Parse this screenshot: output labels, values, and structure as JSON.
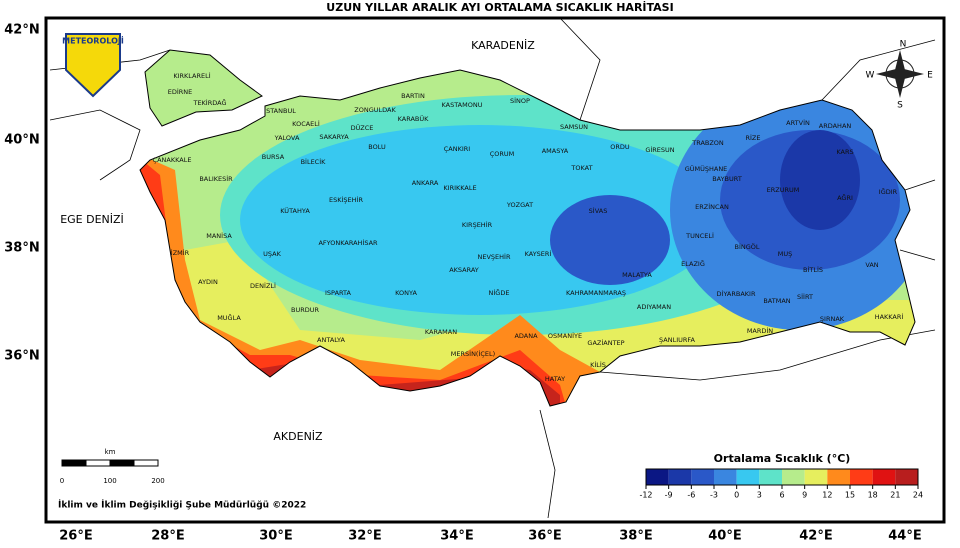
{
  "title": "UZUN YILLAR ARALIK AYI ORTALAMA SICAKLIK HARİTASI",
  "logo": "METEOROLOJİ",
  "compass": [
    "N",
    "E",
    "S",
    "W"
  ],
  "lat_labels": [
    "42°N",
    "40°N",
    "38°N",
    "36°N"
  ],
  "lon_labels": [
    "26°E",
    "28°E",
    "30°E",
    "32°E",
    "34°E",
    "36°E",
    "38°E",
    "40°E",
    "42°E",
    "44°E"
  ],
  "seas": [
    "KARADENİZ",
    "EGE DENİZİ",
    "AKDENİZ"
  ],
  "provinces": [
    "KIRKLARELİ",
    "EDİRNE",
    "TEKİRDAĞ",
    "İSTANBUL",
    "KOCAELİ",
    "ZONGULDAK",
    "BARTIN",
    "KASTAMONU",
    "SİNOP",
    "SAMSUN",
    "ORDU",
    "GİRESUN",
    "TRABZON",
    "RİZE",
    "ARTVİN",
    "ARDAHAN",
    "KARS",
    "IĞDIR",
    "AĞRI",
    "ERZURUM",
    "BAYBURT",
    "GÜMÜŞHANE",
    "ERZİNCAN",
    "TUNCELİ",
    "BİNGÖL",
    "MUŞ",
    "BİTLİS",
    "VAN",
    "HAKKARİ",
    "ŞIRNAK",
    "SİİRT",
    "BATMAN",
    "MARDİN",
    "DİYARBAKIR",
    "ELAZIĞ",
    "MALATYA",
    "ADIYAMAN",
    "ŞANLIURFA",
    "GAZİANTEP",
    "KİLİS",
    "HATAY",
    "OSMANİYE",
    "ADANA",
    "KAHRAMANMARAŞ",
    "SİVAS",
    "TOKAT",
    "AMASYA",
    "ÇORUM",
    "YOZGAT",
    "KAYSERİ",
    "NİĞDE",
    "NEVŞEHİR",
    "KIRŞEHİR",
    "KIRIKKALE",
    "ANKARA",
    "ÇANKIRI",
    "KARABÜK",
    "DÜZCE",
    "BOLU",
    "SAKARYA",
    "YALOVA",
    "BURSA",
    "BİLECİK",
    "ESKİŞEHİR",
    "KÜTAHYA",
    "AFYONKARAHİSAR",
    "UŞAK",
    "DENİZLİ",
    "AYDIN",
    "İZMİR",
    "MANİSA",
    "BALIKESİR",
    "ÇANAKKALE",
    "MUĞLA",
    "BURDUR",
    "ISPARTA",
    "ANTALYA",
    "KONYA",
    "AKSARAY",
    "KARAMAN",
    "MERSİN(İÇEL)"
  ],
  "scale_bar": {
    "unit": "km",
    "ticks": [
      0,
      100,
      200
    ]
  },
  "footer": "İklim ve İklim Değişikliği Şube Müdürlüğü ©2022",
  "legend": {
    "title": "Ortalama Sıcaklık (°C)",
    "ticks": [
      -12,
      -9,
      -6,
      -3,
      0,
      3,
      6,
      9,
      12,
      15,
      18,
      21,
      24
    ],
    "colors": [
      "#0b1784",
      "#1b38a8",
      "#2a58c8",
      "#3a86e0",
      "#38c8f0",
      "#5ee3c9",
      "#b6ec8c",
      "#e6ee5e",
      "#ff8a1c",
      "#ff3c16",
      "#e01212",
      "#b81e1e"
    ]
  }
}
